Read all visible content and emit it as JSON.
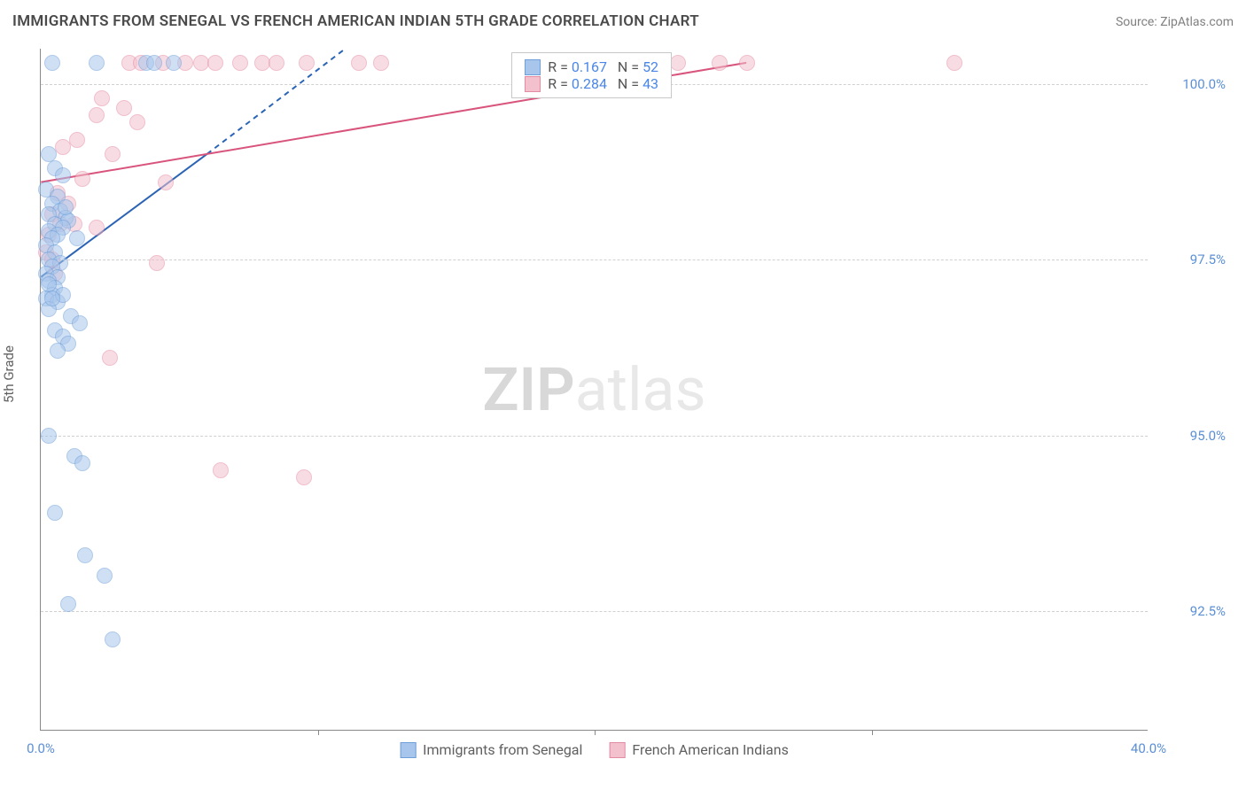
{
  "header": {
    "title": "IMMIGRANTS FROM SENEGAL VS FRENCH AMERICAN INDIAN 5TH GRADE CORRELATION CHART",
    "source": "Source: ZipAtlas.com"
  },
  "axes": {
    "y_title": "5th Grade",
    "x_min": 0.0,
    "x_max": 40.0,
    "y_min": 90.8,
    "y_max": 100.5,
    "y_ticks": [
      {
        "value": 92.5,
        "label": "92.5%"
      },
      {
        "value": 95.0,
        "label": "95.0%"
      },
      {
        "value": 97.5,
        "label": "97.5%"
      },
      {
        "value": 100.0,
        "label": "100.0%"
      }
    ],
    "x_ticks_minor": [
      10.0,
      20.0,
      30.0
    ],
    "x_labels": [
      {
        "value": 0.0,
        "label": "0.0%"
      },
      {
        "value": 40.0,
        "label": "40.0%"
      }
    ]
  },
  "styling": {
    "bg": "#ffffff",
    "grid_color": "#d0d0d0",
    "axis_color": "#888888",
    "label_color": "#5b8fd6",
    "text_color": "#606060",
    "point_radius": 9,
    "point_opacity": 0.55,
    "line_width": 2
  },
  "series": {
    "blue": {
      "label": "Immigrants from Senegal",
      "color_fill": "#a8c6ec",
      "color_stroke": "#6f9fd8",
      "line_color": "#2b64b5",
      "R": "0.167",
      "N": "52",
      "trend": {
        "x1": 0.0,
        "y1": 97.25,
        "x2": 6.0,
        "y2": 99.0,
        "dash_from_x": 6.0,
        "dash_to_x": 11.0,
        "dash_to_y": 100.5
      },
      "points": [
        [
          0.4,
          100.3
        ],
        [
          2.0,
          100.3
        ],
        [
          3.8,
          100.3
        ],
        [
          4.1,
          100.3
        ],
        [
          4.8,
          100.3
        ],
        [
          0.3,
          99.0
        ],
        [
          0.5,
          98.8
        ],
        [
          0.8,
          98.7
        ],
        [
          0.2,
          98.5
        ],
        [
          0.6,
          98.4
        ],
        [
          0.4,
          98.3
        ],
        [
          0.7,
          98.2
        ],
        [
          0.3,
          98.15
        ],
        [
          0.9,
          98.1
        ],
        [
          1.0,
          98.05
        ],
        [
          0.5,
          98.0
        ],
        [
          0.8,
          97.95
        ],
        [
          0.3,
          97.9
        ],
        [
          0.6,
          97.85
        ],
        [
          0.4,
          97.8
        ],
        [
          1.3,
          97.8
        ],
        [
          0.2,
          97.7
        ],
        [
          0.5,
          97.6
        ],
        [
          0.3,
          97.5
        ],
        [
          0.7,
          97.45
        ],
        [
          0.4,
          97.4
        ],
        [
          0.2,
          97.3
        ],
        [
          0.6,
          97.25
        ],
        [
          0.3,
          97.2
        ],
        [
          0.5,
          97.1
        ],
        [
          0.4,
          97.0
        ],
        [
          0.2,
          96.95
        ],
        [
          0.6,
          96.9
        ],
        [
          0.3,
          96.8
        ],
        [
          1.1,
          96.7
        ],
        [
          1.4,
          96.6
        ],
        [
          0.5,
          96.5
        ],
        [
          0.8,
          96.4
        ],
        [
          1.0,
          96.3
        ],
        [
          0.6,
          96.2
        ],
        [
          0.3,
          95.0
        ],
        [
          1.2,
          94.7
        ],
        [
          1.5,
          94.6
        ],
        [
          0.5,
          93.9
        ],
        [
          1.6,
          93.3
        ],
        [
          2.3,
          93.0
        ],
        [
          1.0,
          92.6
        ],
        [
          2.6,
          92.1
        ],
        [
          0.3,
          97.15
        ],
        [
          0.8,
          97.0
        ],
        [
          0.4,
          96.95
        ],
        [
          0.9,
          98.25
        ]
      ]
    },
    "pink": {
      "label": "French American Indians",
      "color_fill": "#f2c1cd",
      "color_stroke": "#e48ba4",
      "line_color": "#d9547c",
      "R": "0.284",
      "N": "43",
      "trend": {
        "x1": 0.0,
        "y1": 98.6,
        "x2": 25.5,
        "y2": 100.3
      },
      "points": [
        [
          3.2,
          100.3
        ],
        [
          3.6,
          100.3
        ],
        [
          4.4,
          100.3
        ],
        [
          5.2,
          100.3
        ],
        [
          5.8,
          100.3
        ],
        [
          6.3,
          100.3
        ],
        [
          7.2,
          100.3
        ],
        [
          8.0,
          100.3
        ],
        [
          8.5,
          100.3
        ],
        [
          9.6,
          100.3
        ],
        [
          11.5,
          100.3
        ],
        [
          12.3,
          100.3
        ],
        [
          18.5,
          100.3
        ],
        [
          20.5,
          100.3
        ],
        [
          21.0,
          100.3
        ],
        [
          22.5,
          100.3
        ],
        [
          23.0,
          100.3
        ],
        [
          24.5,
          100.3
        ],
        [
          25.5,
          100.3
        ],
        [
          33.0,
          100.3
        ],
        [
          2.2,
          99.8
        ],
        [
          2.0,
          99.55
        ],
        [
          3.5,
          99.45
        ],
        [
          1.3,
          99.2
        ],
        [
          0.8,
          99.1
        ],
        [
          2.6,
          99.0
        ],
        [
          4.5,
          98.6
        ],
        [
          0.6,
          98.45
        ],
        [
          1.0,
          98.3
        ],
        [
          0.4,
          98.15
        ],
        [
          0.7,
          98.0
        ],
        [
          2.0,
          97.95
        ],
        [
          0.3,
          97.85
        ],
        [
          4.2,
          97.45
        ],
        [
          0.5,
          97.3
        ],
        [
          0.2,
          97.6
        ],
        [
          0.4,
          97.5
        ],
        [
          2.5,
          96.1
        ],
        [
          6.5,
          94.5
        ],
        [
          9.5,
          94.4
        ],
        [
          1.5,
          98.65
        ],
        [
          1.2,
          98.0
        ],
        [
          3.0,
          99.65
        ]
      ]
    }
  },
  "legend_box": {
    "rows": [
      {
        "swatch": "blue",
        "text_prefix": "R = ",
        "r_val": "0.167",
        "n_prefix": "   N = ",
        "n_val": "52"
      },
      {
        "swatch": "pink",
        "text_prefix": "R = ",
        "r_val": "0.284",
        "n_prefix": "   N = ",
        "n_val": "43"
      }
    ]
  },
  "watermark": {
    "bold": "ZIP",
    "rest": "atlas"
  }
}
